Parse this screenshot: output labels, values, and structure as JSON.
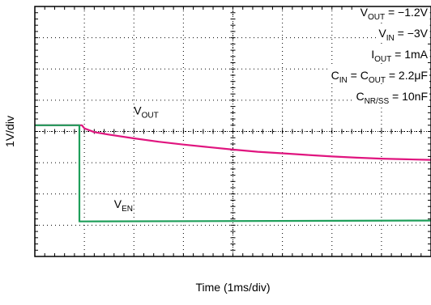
{
  "chart_data": {
    "type": "line",
    "xlabel": "Time (1ms/div)",
    "ylabel": "1V/div",
    "divisions": {
      "x": 8,
      "y": 8
    },
    "grid": true,
    "annotations": [
      {
        "base": "V",
        "sub": "OUT",
        "rest": " = −1.2V"
      },
      {
        "base": "V",
        "sub": "IN",
        "rest": " = −3V"
      },
      {
        "base": "I",
        "sub": "OUT",
        "rest": " = 1mA"
      },
      {
        "parts": [
          {
            "base": "C",
            "sub": "IN",
            "rest": " = "
          },
          {
            "base": "C",
            "sub": "OUT",
            "rest": " = 2.2μF"
          }
        ]
      },
      {
        "base": "C",
        "sub": "NR/SS",
        "rest": " = 10nF"
      }
    ],
    "series": [
      {
        "name": "V_OUT",
        "label_base": "V",
        "label_sub": "OUT",
        "color": "#e0157f",
        "x_div": [
          0,
          0.9,
          0.95,
          1.0,
          1.2,
          1.5,
          2.0,
          2.5,
          3.0,
          3.5,
          4.0,
          4.5,
          5.0,
          5.5,
          6.0,
          6.5,
          7.0,
          7.5,
          8.0
        ],
        "y_div": [
          4.2,
          4.2,
          4.2,
          4.1,
          3.98,
          3.9,
          3.78,
          3.67,
          3.58,
          3.5,
          3.42,
          3.35,
          3.3,
          3.25,
          3.2,
          3.16,
          3.13,
          3.11,
          3.09
        ]
      },
      {
        "name": "V_EN",
        "label_base": "V",
        "label_sub": "EN",
        "color": "#1f9e5a",
        "x_div": [
          0,
          0.9,
          0.9,
          8.0
        ],
        "y_div": [
          4.2,
          4.2,
          1.12,
          1.15
        ]
      }
    ]
  }
}
